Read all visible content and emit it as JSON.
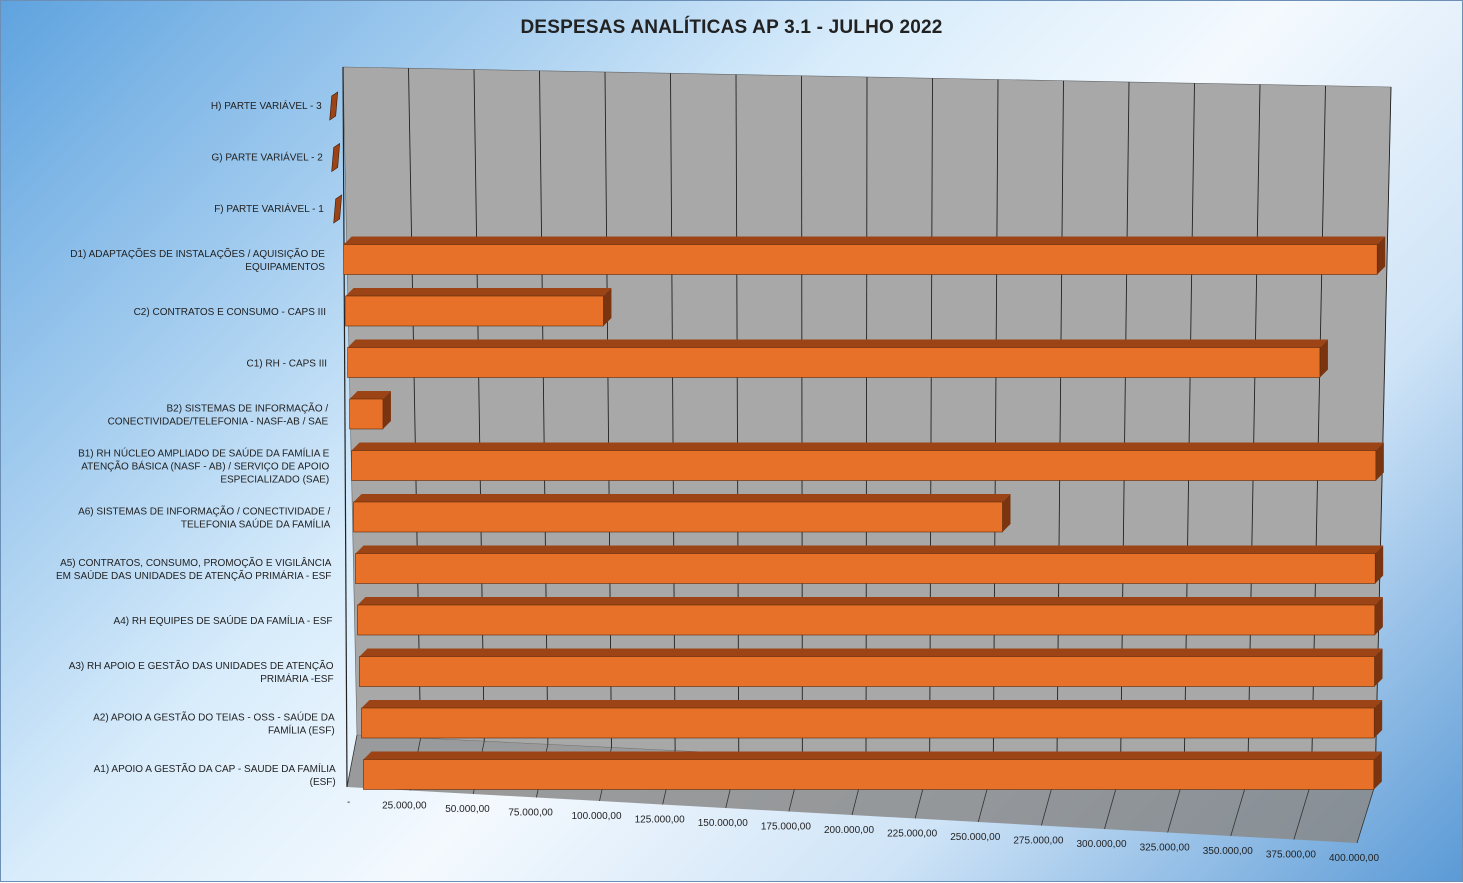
{
  "chart_data": {
    "type": "bar",
    "orientation": "horizontal",
    "title": "DESPESAS ANALÍTICAS AP 3.1 - JULHO 2022",
    "categories": [
      [
        "H) PARTE VARIÁVEL - 3"
      ],
      [
        "G) PARTE VARIÁVEL - 2"
      ],
      [
        "F) PARTE VARIÁVEL - 1"
      ],
      [
        "D1) ADAPTAÇÕES DE INSTALAÇÕES / AQUISIÇÃO DE",
        "EQUIPAMENTOS"
      ],
      [
        "C2) CONTRATOS E CONSUMO - CAPS III"
      ],
      [
        "C1) RH - CAPS III"
      ],
      [
        "B2) SISTEMAS DE INFORMAÇÃO /",
        "CONECTIVIDADE/TELEFONIA - NASF-AB / SAE"
      ],
      [
        "B1) RH NÚCLEO AMPLIADO DE SAÚDE DA FAMÍLIA E",
        "ATENÇÃO BÁSICA (NASF - AB) / SERVIÇO DE APOIO",
        "ESPECIALIZADO (SAE)"
      ],
      [
        "A6) SISTEMAS DE INFORMAÇÃO / CONECTIVIDADE /",
        "TELEFONIA SAÚDE DA FAMÍLIA"
      ],
      [
        "A5) CONTRATOS, CONSUMO, PROMOÇÃO E VIGILÂNCIA",
        "EM SAÚDE DAS UNIDADES DE ATENÇÃO PRIMÁRIA - ESF"
      ],
      [
        "A4) RH EQUIPES DE SAÚDE DA FAMÍLIA - ESF"
      ],
      [
        "A3) RH APOIO E GESTÃO DAS UNIDADES DE ATENÇÃO",
        "PRIMÁRIA -ESF"
      ],
      [
        "A2) APOIO A GESTÃO DO TEIAS - OSS - SAÚDE DA",
        "FAMÍLIA (ESF)"
      ],
      [
        "A1) APOIO A GESTÃO DA CAP - SAUDE DA FAMÍLIA",
        "(ESF)"
      ]
    ],
    "values": [
      0,
      0,
      0,
      400000,
      100000,
      378000,
      13000,
      400000,
      254000,
      400000,
      400000,
      400000,
      400000,
      400000
    ],
    "series": [
      {
        "name": "",
        "values": [
          0,
          0,
          0,
          400000,
          100000,
          378000,
          13000,
          400000,
          254000,
          400000,
          400000,
          400000,
          400000,
          400000
        ]
      }
    ],
    "x_ticks": [
      "-",
      "25.000,00",
      "50.000,00",
      "75.000,00",
      "100.000,00",
      "125.000,00",
      "150.000,00",
      "175.000,00",
      "200.000,00",
      "225.000,00",
      "250.000,00",
      "275.000,00",
      "300.000,00",
      "325.000,00",
      "350.000,00",
      "375.000,00",
      "400.000,00"
    ],
    "xlim": [
      0,
      400000
    ],
    "xlabel": "",
    "ylabel": "",
    "grid": true,
    "legend": "none",
    "colors": {
      "bar_front": "#e8712a",
      "bar_top": "#9c4416",
      "bar_side": "#7a3510",
      "wall": "#a8a8a8",
      "floor": "#8a8a8a",
      "gridline": "#222222"
    }
  }
}
